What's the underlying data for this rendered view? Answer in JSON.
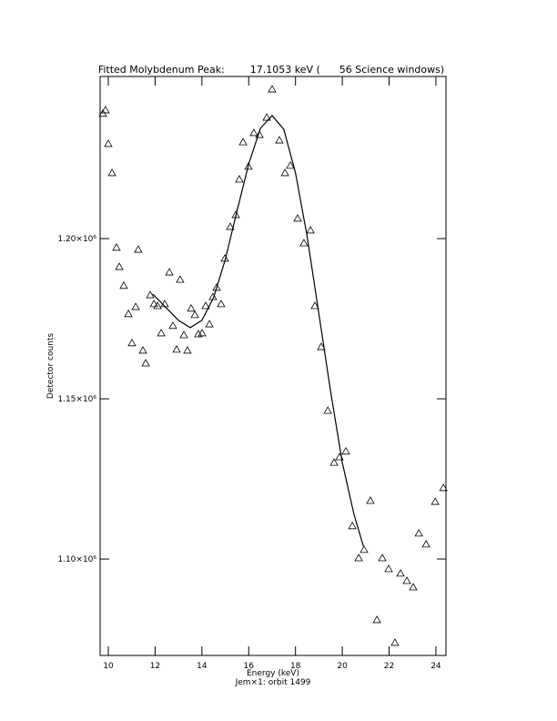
{
  "chart_data": {
    "type": "scatter",
    "title": "Fitted Molybdenum Peak:        17.1053 keV (      56 Science windows)",
    "xlabel": "Energy (keV)",
    "subtitle": "Jem×1: orbit 1499",
    "ylabel": "Detector counts",
    "xlim": [
      9.65,
      24.43
    ],
    "ylim": [
      1069900,
      1250600
    ],
    "xticks": [
      10,
      12,
      14,
      16,
      18,
      20,
      22,
      24
    ],
    "yticks": [
      {
        "value": 1100000,
        "label": "1.10×10⁶"
      },
      {
        "value": 1150000,
        "label": "1.15×10⁶"
      },
      {
        "value": 1200000,
        "label": "1.20×10⁶"
      }
    ],
    "color": "#000000",
    "x": [
      9.77,
      9.88,
      10.0,
      10.16,
      10.35,
      10.47,
      10.66,
      10.86,
      11.01,
      11.17,
      11.28,
      11.48,
      11.6,
      11.79,
      11.95,
      12.1,
      12.26,
      12.41,
      12.61,
      12.76,
      12.92,
      13.07,
      13.23,
      13.38,
      13.54,
      13.7,
      13.85,
      14.01,
      14.16,
      14.32,
      14.47,
      14.63,
      14.82,
      14.98,
      15.21,
      15.45,
      15.6,
      15.76,
      15.99,
      16.22,
      16.46,
      16.77,
      17.0,
      17.31,
      17.55,
      17.78,
      18.09,
      18.36,
      18.64,
      18.83,
      19.1,
      19.38,
      19.65,
      19.88,
      20.15,
      20.43,
      20.7,
      20.93,
      21.2,
      21.48,
      21.71,
      21.98,
      22.25,
      22.49,
      22.76,
      23.03,
      23.27,
      23.58,
      23.97,
      24.32
    ],
    "values": [
      1239000,
      1240100,
      1229600,
      1220500,
      1197200,
      1191200,
      1185300,
      1176500,
      1167400,
      1178700,
      1196600,
      1165100,
      1161100,
      1182400,
      1179600,
      1179000,
      1170500,
      1179600,
      1189500,
      1172800,
      1165400,
      1187200,
      1169900,
      1165100,
      1178200,
      1176200,
      1170200,
      1170500,
      1179000,
      1173300,
      1181800,
      1184700,
      1179600,
      1193800,
      1203700,
      1207400,
      1218500,
      1230100,
      1222500,
      1233000,
      1232400,
      1237800,
      1246600,
      1230700,
      1220500,
      1222800,
      1206300,
      1198600,
      1202600,
      1179000,
      1166200,
      1146300,
      1130100,
      1131800,
      1133600,
      1110300,
      1100300,
      1102900,
      1118200,
      1081000,
      1100300,
      1096900,
      1073900,
      1095500,
      1093200,
      1091200,
      1108000,
      1104600,
      1117900,
      1122200
    ],
    "fit": {
      "color": "#000000",
      "x": [
        11.9,
        12.5,
        13.0,
        13.5,
        14.0,
        14.5,
        15.0,
        15.5,
        16.0,
        16.5,
        17.0,
        17.5,
        18.0,
        18.5,
        19.0,
        19.5,
        20.0,
        20.5,
        20.9
      ],
      "values": [
        1182700,
        1178200,
        1174500,
        1172200,
        1174500,
        1181600,
        1193500,
        1208600,
        1223300,
        1234400,
        1238400,
        1234100,
        1220500,
        1200600,
        1176500,
        1152300,
        1130100,
        1113900,
        1104000
      ]
    }
  }
}
